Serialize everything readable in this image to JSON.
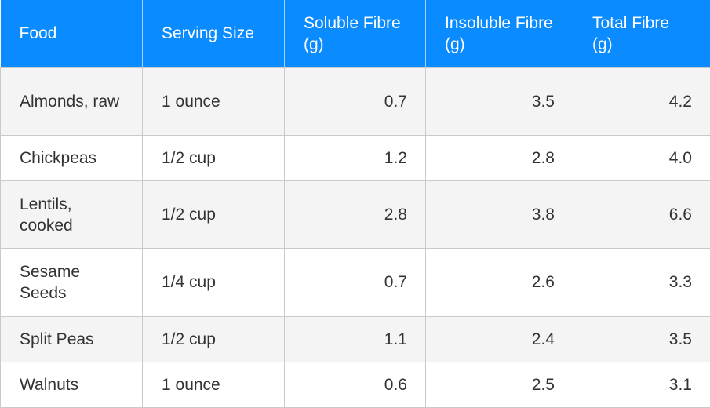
{
  "table": {
    "headers": {
      "food": "Food",
      "serving_size": "Serving Size",
      "soluble": "Soluble Fibre (g)",
      "insoluble": "Insoluble Fibre (g)",
      "total": "Total Fibre (g)"
    },
    "rows": [
      {
        "food": "Almonds, raw",
        "serving": "1 ounce",
        "soluble": "0.7",
        "insoluble": "3.5",
        "total": "4.2"
      },
      {
        "food": "Chickpeas",
        "serving": "1/2 cup",
        "soluble": "1.2",
        "insoluble": "2.8",
        "total": "4.0"
      },
      {
        "food": "Lentils, cooked",
        "serving": "1/2 cup",
        "soluble": "2.8",
        "insoluble": "3.8",
        "total": "6.6"
      },
      {
        "food": "Sesame Seeds",
        "serving": "1/4 cup",
        "soluble": "0.7",
        "insoluble": "2.6",
        "total": "3.3"
      },
      {
        "food": "Split Peas",
        "serving": "1/2 cup",
        "soluble": "1.1",
        "insoluble": "2.4",
        "total": "3.5"
      },
      {
        "food": "Walnuts",
        "serving": "1 ounce",
        "soluble": "0.6",
        "insoluble": "2.5",
        "total": "3.1"
      }
    ]
  },
  "colors": {
    "header_bg": "#0a8bff",
    "header_text": "#ffffff",
    "row_alt_bg": "#f4f4f4",
    "border": "#c9c9c9",
    "body_text": "#333333"
  }
}
